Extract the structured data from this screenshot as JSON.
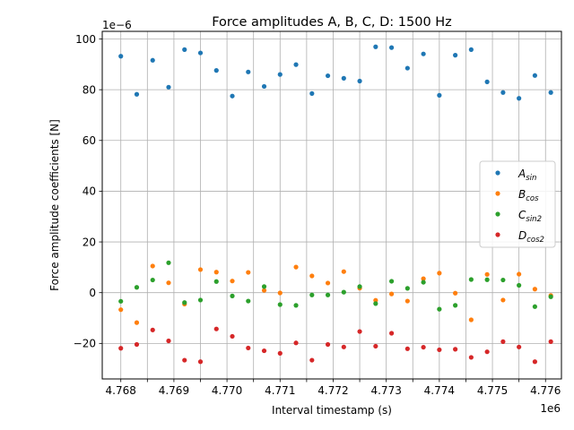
{
  "chart_data": {
    "type": "scatter",
    "title": "Force amplitudes A, B, C, D: 1500 Hz",
    "xlabel": "Interval timestamp (s)",
    "ylabel": "Force amplitude coefficients [N]",
    "x_offset_label": "1e6",
    "y_offset_label": "1e−6",
    "xlim": [
      4767650,
      4776300
    ],
    "ylim": [
      -34,
      103
    ],
    "x_ticks": [
      4768000,
      4768500,
      4769000,
      4769500,
      4770000,
      4770500,
      4771000,
      4771500,
      4772000,
      4772500,
      4773000,
      4773500,
      4774000,
      4774500,
      4775000,
      4775500,
      4776000
    ],
    "x_tick_labels": [
      "4.768",
      "",
      "4.769",
      "",
      "4.770",
      "",
      "4.771",
      "",
      "4.772",
      "",
      "4.773",
      "",
      "4.774",
      "",
      "4.775",
      "",
      "4.776"
    ],
    "y_ticks": [
      -20,
      0,
      20,
      40,
      60,
      80,
      100
    ],
    "y_tick_labels": [
      "−20",
      "0",
      "20",
      "40",
      "60",
      "80",
      "100"
    ],
    "grid": true,
    "legend_position": "center-right",
    "x": [
      4768000,
      4768300,
      4768600,
      4768900,
      4769200,
      4769500,
      4769800,
      4770100,
      4770400,
      4770700,
      4771000,
      4771300,
      4771600,
      4771900,
      4772200,
      4772500,
      4772800,
      4773100,
      4773400,
      4773700,
      4774000,
      4774300,
      4774600,
      4774900,
      4775200,
      4775500,
      4775800,
      4776100
    ],
    "series": [
      {
        "name": "A",
        "subscript": "sin",
        "color": "#1f77b4",
        "values": [
          93.2,
          78.2,
          91.6,
          81.0,
          95.8,
          94.5,
          87.6,
          77.5,
          87.0,
          81.3,
          86.0,
          89.9,
          78.5,
          85.5,
          84.5,
          83.4,
          96.9,
          96.6,
          88.5,
          94.1,
          77.8,
          93.6,
          95.8,
          83.1,
          78.9,
          76.6,
          85.6,
          78.9
        ]
      },
      {
        "name": "B",
        "subscript": "cos",
        "color": "#ff7f0e",
        "values": [
          -6.7,
          -11.8,
          10.5,
          3.9,
          -4.5,
          9.1,
          8.1,
          4.6,
          8.0,
          0.9,
          -0.1,
          10.1,
          6.6,
          3.8,
          8.3,
          1.8,
          -3.0,
          -0.5,
          -3.3,
          5.5,
          7.7,
          -0.2,
          -10.7,
          7.2,
          -2.9,
          7.3,
          1.4,
          -1.1
        ]
      },
      {
        "name": "C",
        "subscript": "sin2",
        "color": "#2ca02c",
        "values": [
          -3.4,
          2.1,
          5.0,
          11.8,
          -3.9,
          -2.9,
          4.4,
          -1.3,
          -3.3,
          2.4,
          -4.7,
          -5.0,
          -0.9,
          -0.9,
          0.2,
          2.4,
          -4.3,
          4.5,
          1.7,
          4.1,
          -6.5,
          -5.0,
          5.2,
          5.1,
          5.0,
          2.9,
          -5.5,
          -1.6
        ]
      },
      {
        "name": "D",
        "subscript": "cos2",
        "color": "#d62728",
        "values": [
          -21.9,
          -20.4,
          -14.7,
          -19.0,
          -26.6,
          -27.2,
          -14.3,
          -17.2,
          -21.8,
          -22.9,
          -23.9,
          -19.8,
          -26.6,
          -20.4,
          -21.4,
          -15.3,
          -21.1,
          -16.0,
          -22.1,
          -21.5,
          -22.5,
          -22.3,
          -25.5,
          -23.3,
          -19.3,
          -21.4,
          -27.2,
          -19.3
        ]
      }
    ]
  }
}
